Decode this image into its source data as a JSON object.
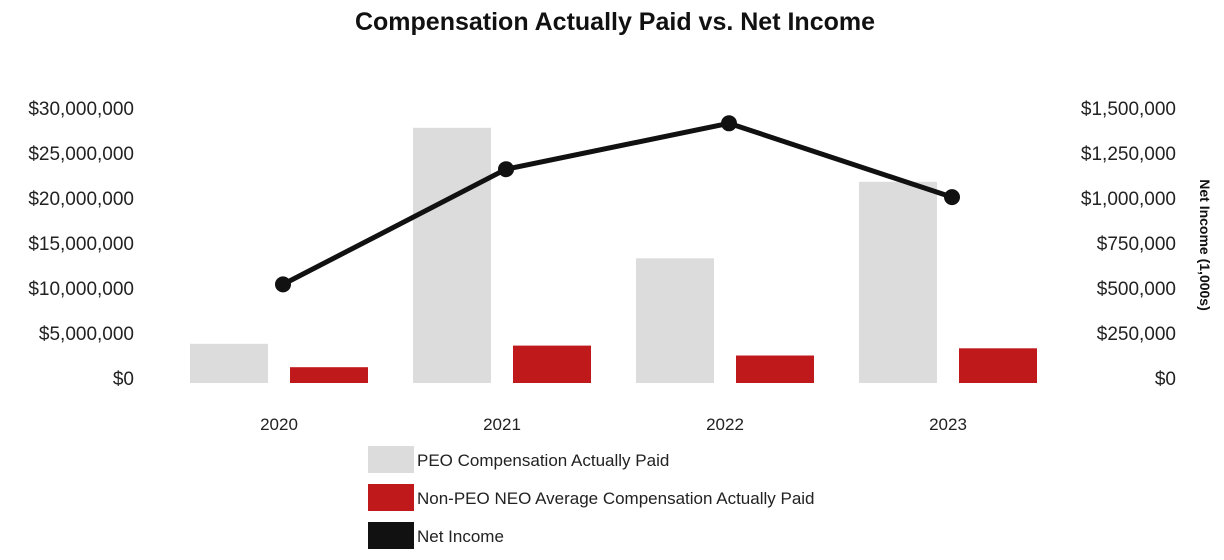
{
  "chart_data": {
    "type": "bar",
    "title": "Compensation Actually Paid vs. Net Income",
    "categories": [
      "2020",
      "2021",
      "2022",
      "2023"
    ],
    "series": [
      {
        "name": "PEO Compensation Actually Paid",
        "kind": "bar",
        "axis": "left",
        "color": "#dcdcdd",
        "values": [
          3800000,
          27800000,
          13300000,
          21800000
        ]
      },
      {
        "name": "Non-PEO NEO Average Compensation Actually Paid",
        "kind": "bar",
        "axis": "left",
        "color": "#c0191c",
        "values": [
          1200000,
          3600000,
          2500000,
          3300000
        ]
      },
      {
        "name": "Net Income",
        "kind": "line",
        "axis": "right",
        "color": "#111111",
        "values": [
          520000,
          1160000,
          1415000,
          1005000
        ]
      }
    ],
    "left_axis": {
      "ylim": [
        0,
        30000000
      ],
      "ticks": [
        "$0",
        "$5,000,000",
        "$10,000,000",
        "$15,000,000",
        "$20,000,000",
        "$25,000,000",
        "$30,000,000"
      ]
    },
    "right_axis": {
      "ylim": [
        0,
        1500000
      ],
      "label": "Net Income (1,000s)",
      "ticks": [
        "$0",
        "$250,000",
        "$500,000",
        "$750,000",
        "$1,000,000",
        "$1,250,000",
        "$1,500,000"
      ]
    },
    "xlabel": "",
    "ylabel": "",
    "grid": false,
    "legend_position": "bottom"
  }
}
